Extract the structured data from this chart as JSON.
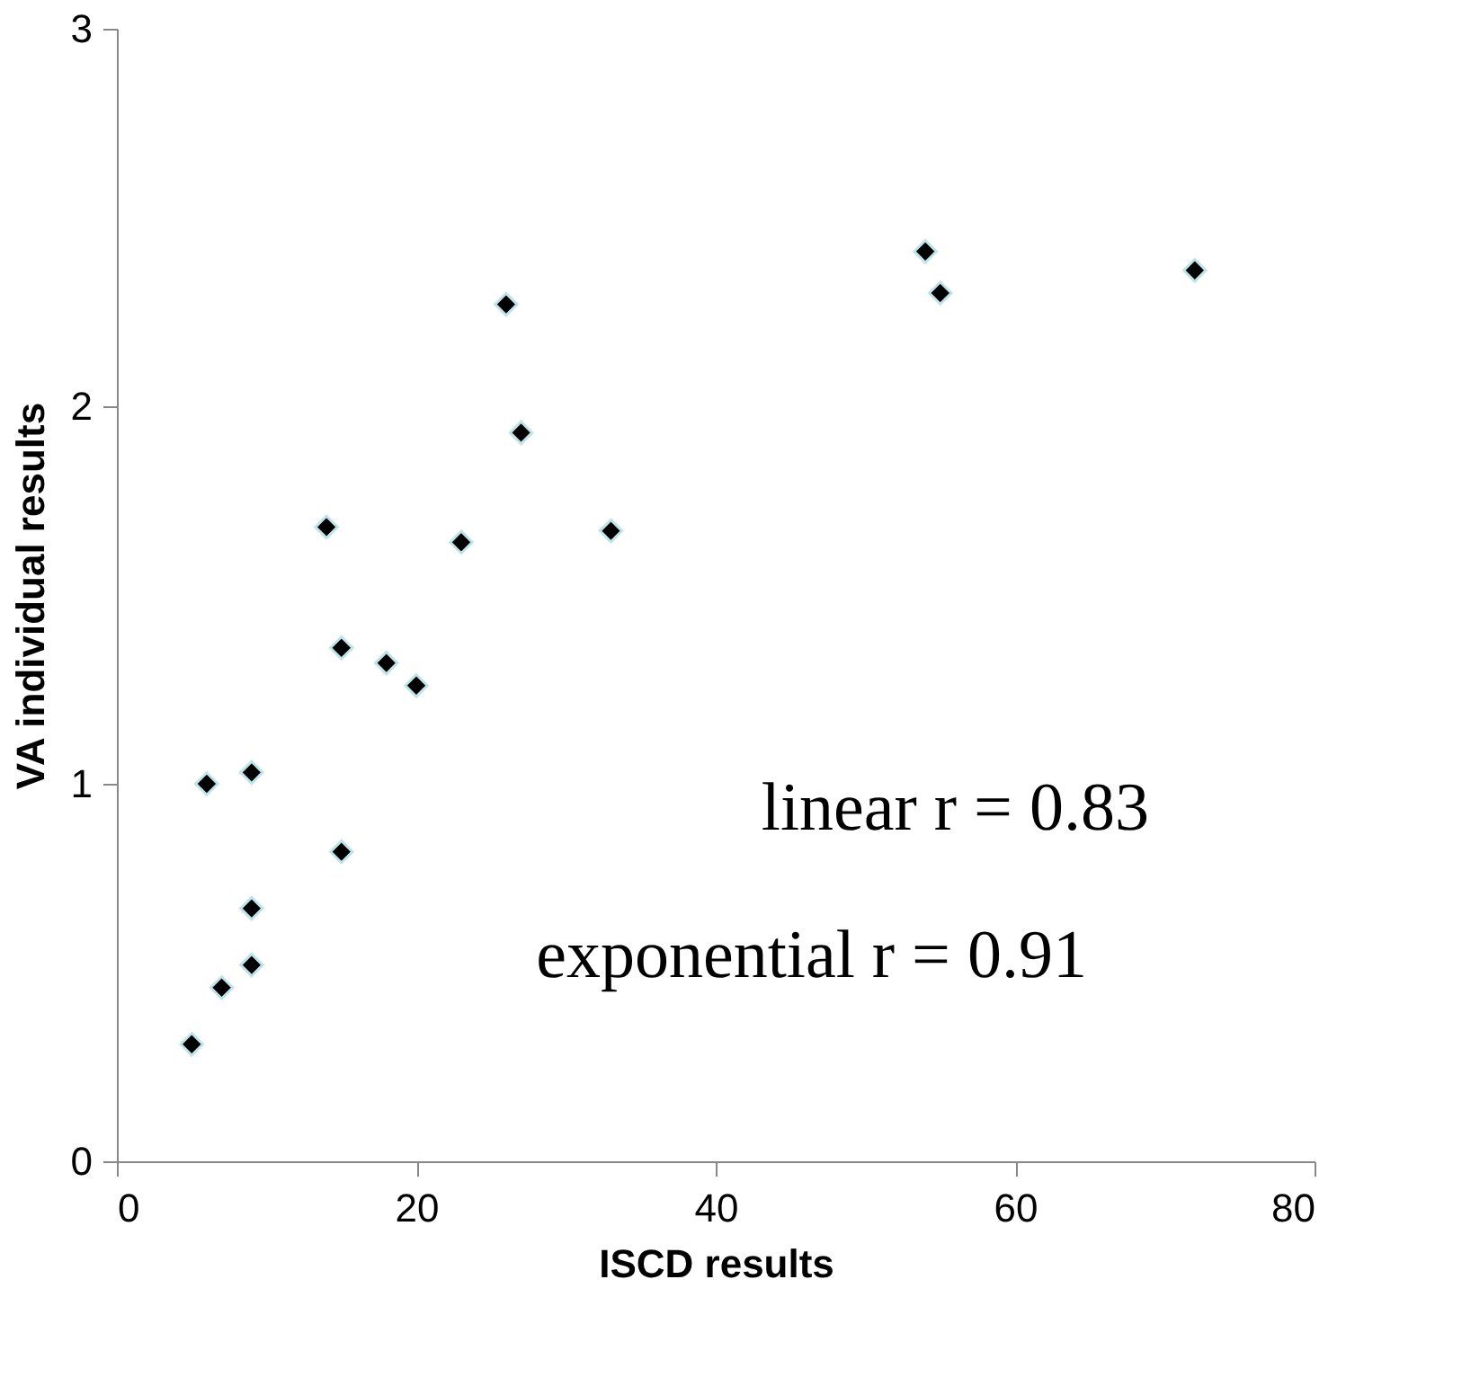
{
  "chart_data": {
    "type": "scatter",
    "xlabel": "ISCD results",
    "ylabel": "VA individual results",
    "x": [
      5,
      7,
      9,
      9,
      6,
      9,
      15,
      14,
      15,
      18,
      20,
      23,
      26,
      27,
      33,
      54,
      55,
      72
    ],
    "series": [
      {
        "color": "#000000",
        "values": [
          0.31,
          0.46,
          0.52,
          0.67,
          1.0,
          1.03,
          0.82,
          1.68,
          1.36,
          1.32,
          1.26,
          1.64,
          2.27,
          1.93,
          1.67,
          2.41,
          2.3,
          2.36
        ]
      }
    ],
    "xlim": [
      0,
      80
    ],
    "xticks": [
      0,
      20,
      40,
      60,
      80
    ],
    "ylim": [
      0,
      3
    ],
    "yticks": [
      0,
      1,
      2,
      3
    ],
    "grid": false,
    "marker": "diamond",
    "annotations": [
      "linear r = 0.83",
      "exponential r = 0.91"
    ]
  }
}
